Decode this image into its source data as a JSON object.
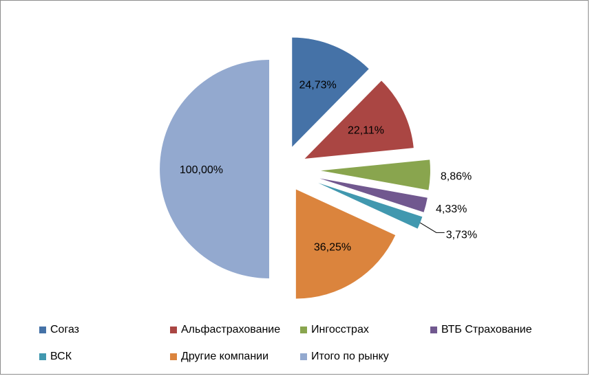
{
  "chart_data": {
    "type": "pie",
    "exploded": true,
    "series": [
      {
        "name": "Согаз",
        "value": 24.73,
        "label": "24,73%",
        "color": "#4572a7"
      },
      {
        "name": "Альфастрахование",
        "value": 22.11,
        "label": "22,11%",
        "color": "#aa4643"
      },
      {
        "name": "Ингосстрах",
        "value": 8.86,
        "label": "8,86%",
        "color": "#89a54e"
      },
      {
        "name": "ВТБ Страхование",
        "value": 4.33,
        "label": "4,33%",
        "color": "#71588f"
      },
      {
        "name": "ВСК",
        "value": 3.73,
        "label": "3,73%",
        "color": "#4198af"
      },
      {
        "name": "Другие компании",
        "value": 36.25,
        "label": "36,25%",
        "color": "#db843d"
      },
      {
        "name": "Итого по рынку",
        "value": 100.0,
        "label": "100,00%",
        "color": "#93a9cf"
      }
    ],
    "legend_position": "bottom"
  }
}
